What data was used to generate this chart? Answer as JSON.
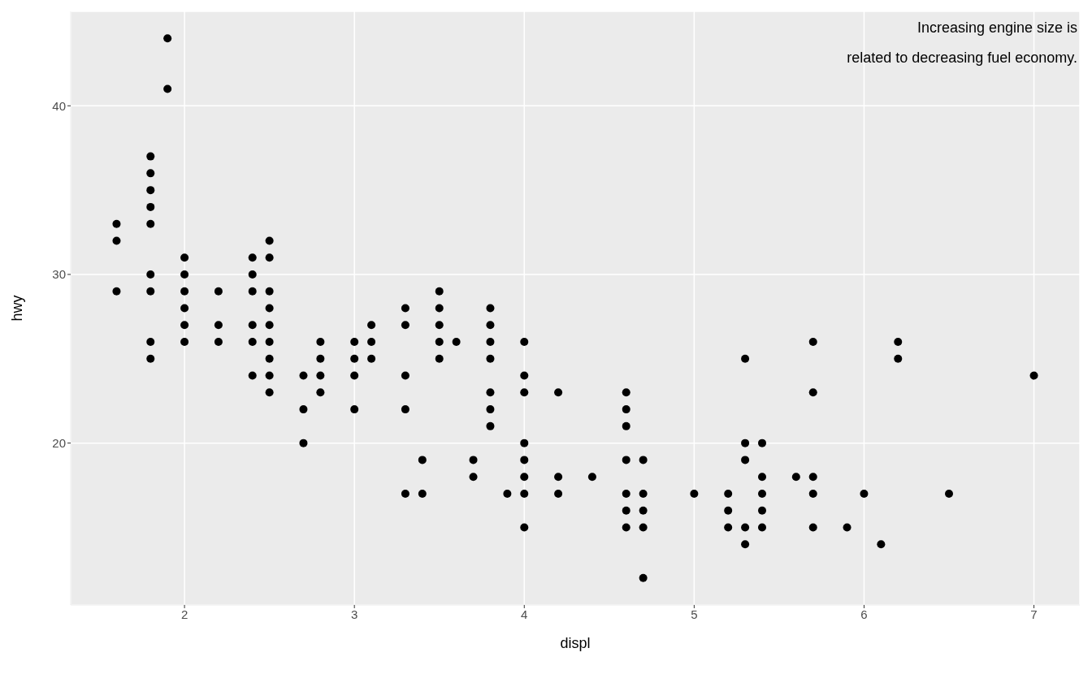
{
  "chart_data": {
    "type": "scatter",
    "xlabel": "displ",
    "ylabel": "hwy",
    "annotations": [
      "Increasing engine size is\nrelated to decreasing fuel economy."
    ],
    "x": [
      1.6,
      1.6,
      1.6,
      1.8,
      1.8,
      1.8,
      1.8,
      1.8,
      1.8,
      1.8,
      1.8,
      1.8,
      1.9,
      1.9,
      2,
      2,
      2,
      2,
      2,
      2,
      2.2,
      2.2,
      2.2,
      2.4,
      2.4,
      2.4,
      2.4,
      2.4,
      2.4,
      2.5,
      2.5,
      2.5,
      2.5,
      2.5,
      2.5,
      2.5,
      2.5,
      2.5,
      2.7,
      2.7,
      2.7,
      2.8,
      2.8,
      2.8,
      2.8,
      3,
      3,
      3,
      3,
      3.1,
      3.1,
      3.1,
      3.3,
      3.3,
      3.3,
      3.3,
      3.3,
      3.4,
      3.4,
      3.5,
      3.5,
      3.5,
      3.5,
      3.5,
      3.6,
      3.7,
      3.7,
      3.8,
      3.8,
      3.8,
      3.8,
      3.8,
      3.8,
      3.8,
      3.9,
      4,
      4,
      4,
      4,
      4,
      4,
      4,
      4,
      4.2,
      4.2,
      4.2,
      4.4,
      4.6,
      4.6,
      4.6,
      4.6,
      4.6,
      4.6,
      4.6,
      4.7,
      4.7,
      4.7,
      4.7,
      4.7,
      5,
      5.2,
      5.2,
      5.2,
      5.3,
      5.3,
      5.3,
      5.3,
      5.3,
      5.4,
      5.4,
      5.4,
      5.4,
      5.4,
      5.6,
      5.7,
      5.7,
      5.7,
      5.7,
      5.7,
      5.9,
      6,
      6.1,
      6.2,
      6.2,
      6.5,
      7
    ],
    "values": [
      33,
      32,
      29,
      37,
      36,
      35,
      34,
      33,
      30,
      29,
      26,
      25,
      44,
      41,
      31,
      30,
      29,
      28,
      27,
      26,
      29,
      27,
      26,
      31,
      30,
      29,
      27,
      26,
      24,
      32,
      31,
      29,
      28,
      27,
      26,
      25,
      24,
      23,
      24,
      22,
      20,
      26,
      25,
      24,
      23,
      26,
      25,
      24,
      22,
      27,
      26,
      25,
      28,
      27,
      24,
      22,
      17,
      19,
      17,
      29,
      28,
      27,
      26,
      25,
      26,
      19,
      18,
      28,
      27,
      26,
      25,
      23,
      22,
      21,
      17,
      26,
      24,
      23,
      20,
      19,
      18,
      17,
      15,
      23,
      18,
      17,
      18,
      23,
      22,
      21,
      19,
      17,
      16,
      15,
      19,
      17,
      16,
      15,
      12,
      17,
      17,
      16,
      15,
      25,
      20,
      19,
      15,
      14,
      20,
      18,
      17,
      16,
      15,
      18,
      26,
      23,
      18,
      17,
      15,
      15,
      17,
      14,
      26,
      25,
      17,
      24
    ],
    "color": "#000000",
    "marker": "circle",
    "xlim": [
      1.33,
      7.27
    ],
    "xticks": [
      2,
      3,
      4,
      5,
      6,
      7
    ],
    "ylim": [
      10.4,
      45.6
    ],
    "yticks": [
      20,
      30,
      40
    ],
    "grid": true
  }
}
